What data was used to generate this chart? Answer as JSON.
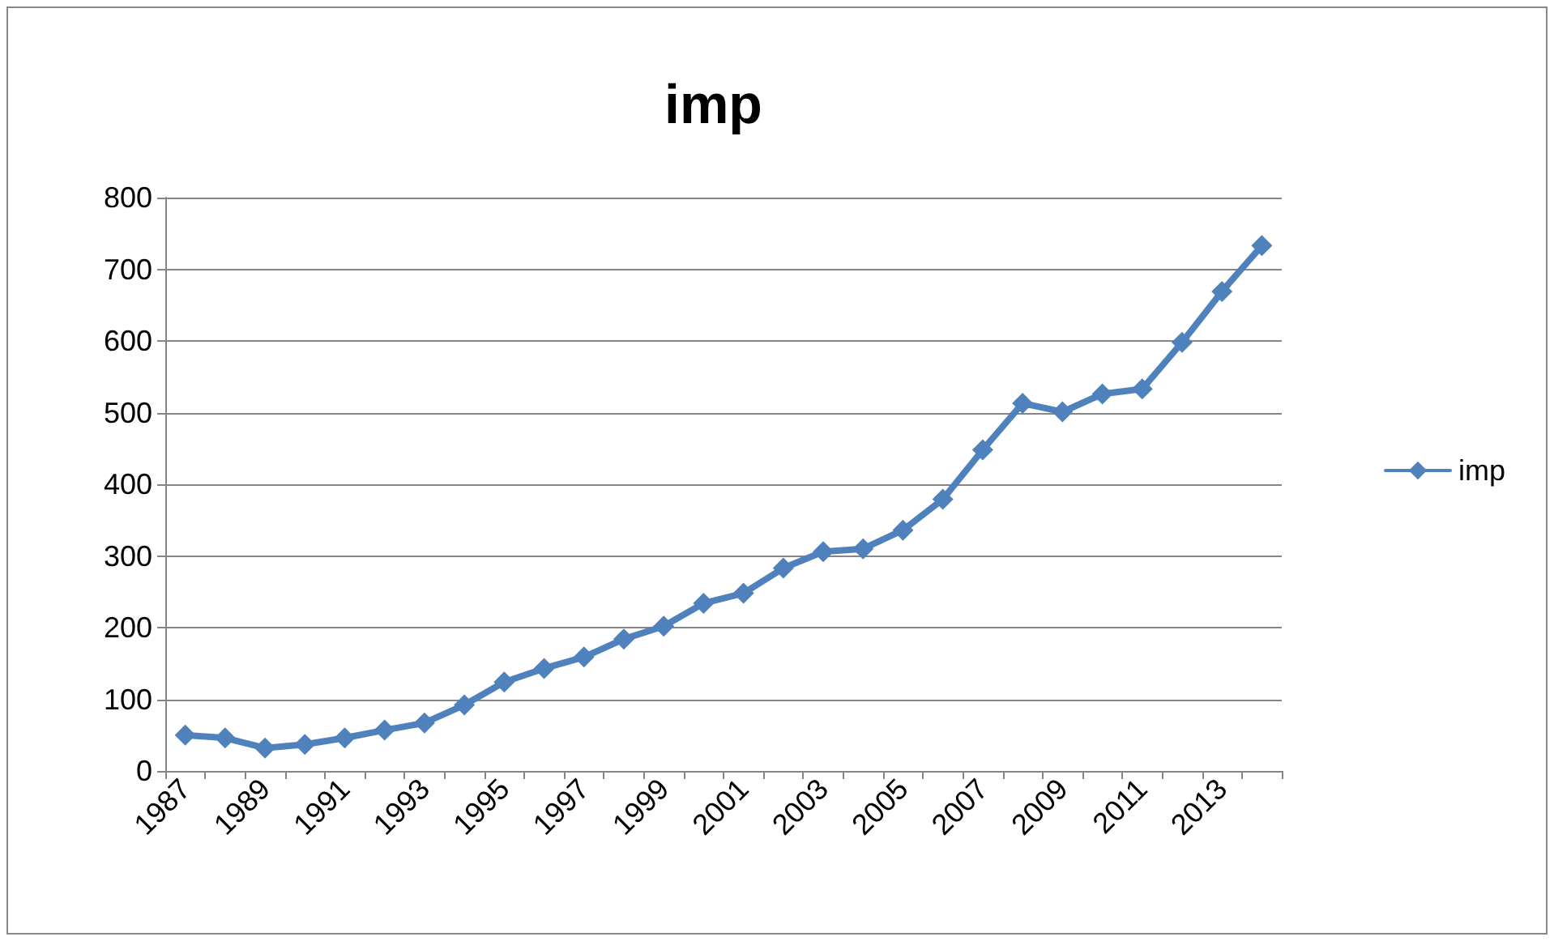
{
  "chart_data": {
    "type": "line",
    "title": "imp",
    "categories": [
      "1987",
      null,
      "1989",
      null,
      "1991",
      null,
      "1993",
      null,
      "1995",
      null,
      "1997",
      null,
      "1999",
      null,
      "2001",
      null,
      "2003",
      null,
      "2005",
      null,
      "2007",
      null,
      "2009",
      null,
      "2011",
      null,
      "2013",
      null
    ],
    "series": [
      {
        "name": "imp",
        "color": "#4f81bd",
        "values": [
          50,
          46,
          32,
          37,
          46,
          57,
          67,
          92,
          124,
          143,
          159,
          184,
          202,
          234,
          248,
          283,
          306,
          310,
          336,
          379,
          448,
          513,
          501,
          526,
          533,
          598,
          669,
          733
        ]
      }
    ],
    "ylim": [
      0,
      800
    ],
    "yticks": [
      0,
      100,
      200,
      300,
      400,
      500,
      600,
      700,
      800
    ],
    "grid": "y",
    "legend": "right",
    "marker": "diamond",
    "line_style": "solid"
  }
}
